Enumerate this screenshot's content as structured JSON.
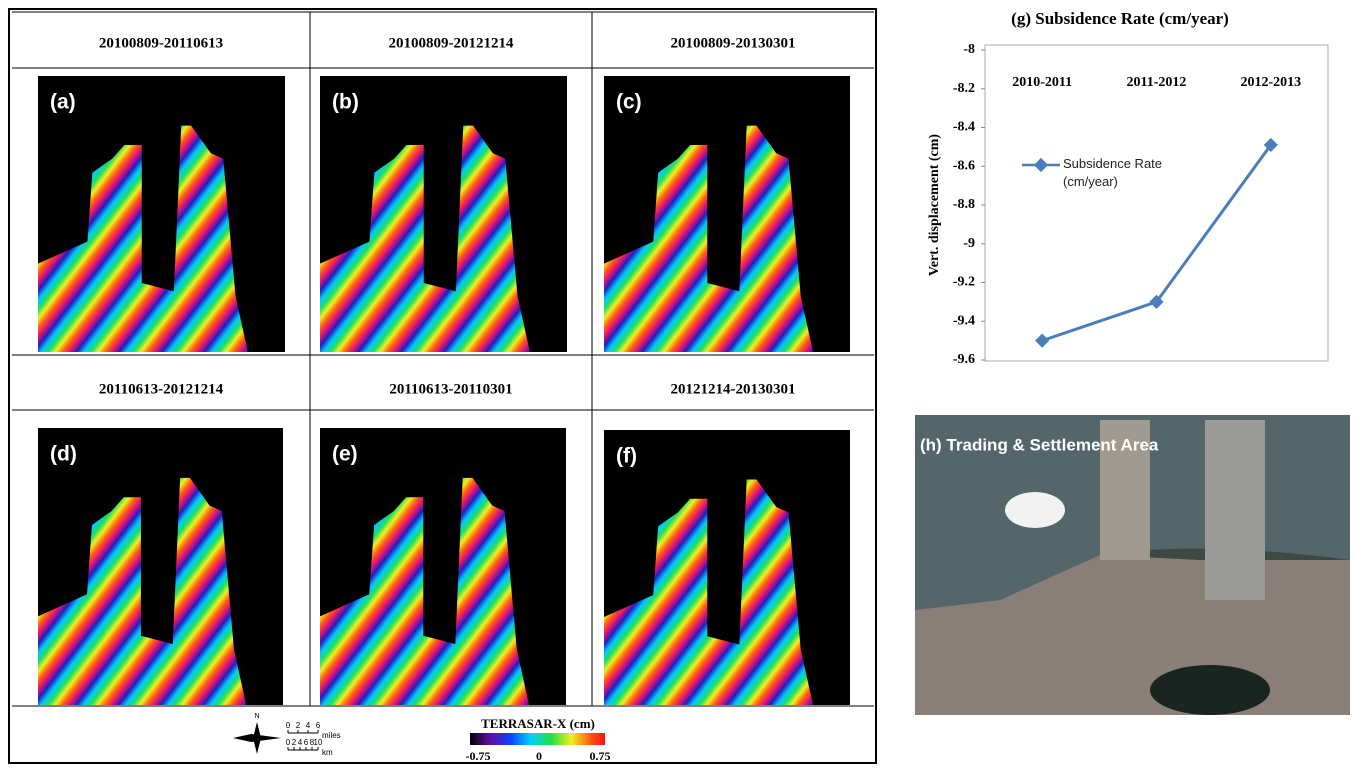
{
  "panels": [
    {
      "header": "20100809-20110613",
      "label": "(a)"
    },
    {
      "header": "20100809-20121214",
      "label": "(b)"
    },
    {
      "header": "20100809-20130301",
      "label": "(c)"
    },
    {
      "header": "20110613-20121214",
      "label": "(d)"
    },
    {
      "header": "20110613-20110301",
      "label": "(e)"
    },
    {
      "header": "20121214-20130301",
      "label": "(f)"
    }
  ],
  "legend": {
    "north": "N",
    "miles_ticks": [
      0,
      2,
      4,
      6
    ],
    "miles_unit": "miles",
    "km_ticks": [
      0,
      2,
      4,
      6,
      8,
      10
    ],
    "km_unit": "km",
    "colorbar_title": "TERRASAR-X (cm)",
    "colorbar_ticks": [
      -0.75,
      0,
      0.75
    ]
  },
  "chart_data": {
    "type": "line",
    "title": "(g)  Subsidence Rate (cm/year)",
    "y_label": "Vert. displacement (cm)",
    "categories": [
      "2010-2011",
      "2011-2012",
      "2012-2013"
    ],
    "series": [
      {
        "name": "Subsidence Rate (cm/year)",
        "color": "#4a7ebb",
        "values": [
          -9.5,
          -9.3,
          -8.49
        ]
      }
    ],
    "ylim": [
      -9.6,
      -8
    ],
    "yticks": [
      -8,
      -8.2,
      -8.4,
      -8.6,
      -8.8,
      -9,
      -9.2,
      -9.4,
      -9.6
    ],
    "grid": false
  },
  "image_h": {
    "label": "(h)  Trading & Settlement Area"
  }
}
